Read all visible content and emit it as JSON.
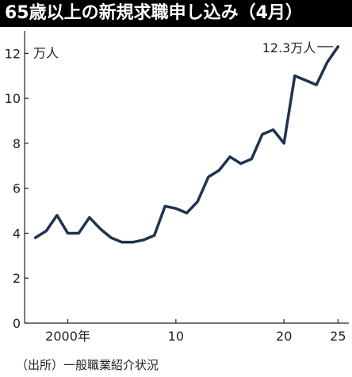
{
  "title": "65歳以上の新規求職申し込み（4月）",
  "source": "（出所）一般職業紹介状況",
  "colors": {
    "line": "#1f3350",
    "title_bg": "#000000",
    "title_fg": "#ffffff"
  },
  "chart_data": {
    "type": "line",
    "unit_label": "万人",
    "end_label": "12.3万人",
    "grid": false,
    "x": [
      1997,
      1998,
      1999,
      2000,
      2001,
      2002,
      2003,
      2004,
      2005,
      2006,
      2007,
      2008,
      2009,
      2010,
      2011,
      2012,
      2013,
      2014,
      2015,
      2016,
      2017,
      2018,
      2019,
      2020,
      2021,
      2022,
      2023,
      2024,
      2025
    ],
    "series": [
      {
        "values": [
          3.8,
          4.1,
          4.8,
          4.0,
          4.0,
          4.7,
          4.2,
          3.8,
          3.6,
          3.6,
          3.7,
          3.9,
          5.2,
          5.1,
          4.9,
          5.4,
          6.5,
          6.8,
          7.4,
          7.1,
          7.3,
          8.4,
          8.6,
          8.0,
          11.0,
          10.8,
          10.6,
          11.6,
          12.3
        ]
      }
    ],
    "xlim": [
      1996,
      2026
    ],
    "ylim": [
      0,
      13
    ],
    "yticks": [
      0,
      2,
      4,
      6,
      8,
      10,
      12
    ],
    "xtick_labels": [
      {
        "x": 2000,
        "label": "2000年"
      },
      {
        "x": 2010,
        "label": "10"
      },
      {
        "x": 2020,
        "label": "20"
      },
      {
        "x": 2025,
        "label": "25"
      }
    ]
  }
}
